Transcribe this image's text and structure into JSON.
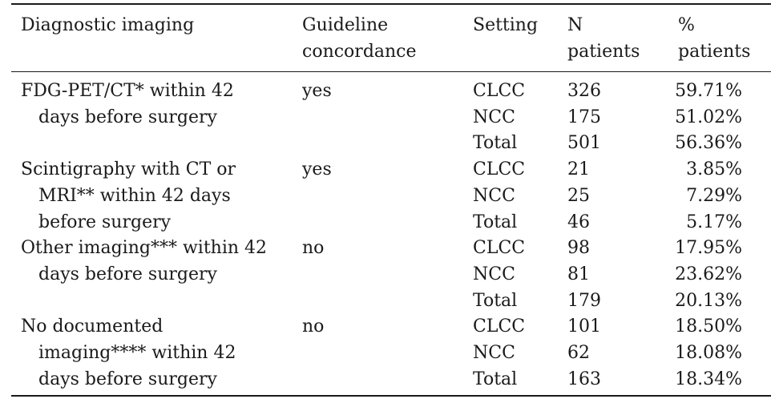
{
  "headers": {
    "imaging_line1": "Diagnostic imaging",
    "concordance_line1": "Guideline",
    "concordance_line2": "concordance",
    "setting": "Setting",
    "n_line1": "N",
    "n_line2": "patients",
    "pct_line1": "%",
    "pct_line2": "patients"
  },
  "groups": [
    {
      "imaging_lines": [
        "FDG-PET/CT* within 42",
        "days before surgery"
      ],
      "concordance": "yes",
      "rows": [
        {
          "setting": "CLCC",
          "n": "326",
          "pct": "59.71%"
        },
        {
          "setting": "NCC",
          "n": "175",
          "pct": "51.02%"
        },
        {
          "setting": "Total",
          "n": "501",
          "pct": "56.36%"
        }
      ]
    },
    {
      "imaging_lines": [
        "Scintigraphy with CT or",
        "MRI** within 42 days",
        "before surgery"
      ],
      "concordance": "yes",
      "rows": [
        {
          "setting": "CLCC",
          "n": "21",
          "pct": "3.85%"
        },
        {
          "setting": "NCC",
          "n": "25",
          "pct": "7.29%"
        },
        {
          "setting": "Total",
          "n": "46",
          "pct": "5.17%"
        }
      ]
    },
    {
      "imaging_lines": [
        "Other imaging*** within 42",
        "days before surgery"
      ],
      "concordance": "no",
      "rows": [
        {
          "setting": "CLCC",
          "n": "98",
          "pct": "17.95%"
        },
        {
          "setting": "NCC",
          "n": "81",
          "pct": "23.62%"
        },
        {
          "setting": "Total",
          "n": "179",
          "pct": "20.13%"
        }
      ]
    },
    {
      "imaging_lines": [
        "No documented",
        "imaging**** within 42",
        "days before surgery"
      ],
      "concordance": "no",
      "rows": [
        {
          "setting": "CLCC",
          "n": "101",
          "pct": "18.50%"
        },
        {
          "setting": "NCC",
          "n": "62",
          "pct": "18.08%"
        },
        {
          "setting": "Total",
          "n": "163",
          "pct": "18.34%"
        }
      ]
    }
  ]
}
